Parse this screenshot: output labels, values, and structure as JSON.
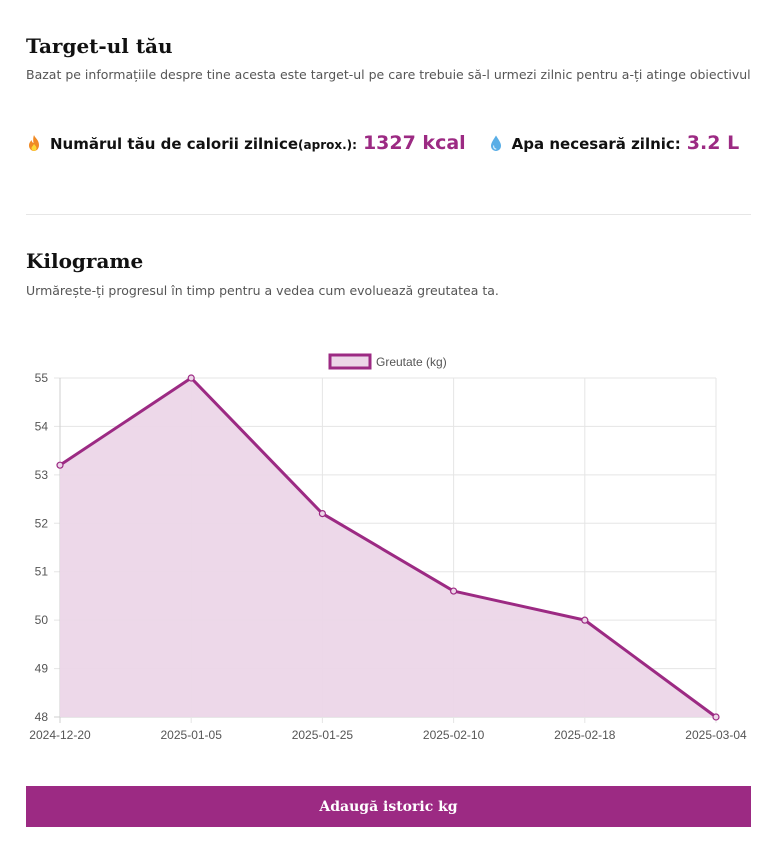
{
  "target": {
    "title": "Target-ul tău",
    "subtitle": "Bazat pe informațiile despre tine acesta este target-ul pe care trebuie să-l urmezi zilnic pentru a-ți atinge obiectivul",
    "calories": {
      "icon": "fire-icon",
      "label": "Numărul tău de calorii zilnice",
      "label_small": "(aprox.):",
      "value": "1327 kcal"
    },
    "water": {
      "icon": "water-drop-icon",
      "label": "Apa necesară zilnic:",
      "value": "3.2 L"
    }
  },
  "weight": {
    "title": "Kilograme",
    "subtitle": "Urmărește-ți progresul în timp pentru a vedea cum evoluează greutatea ta."
  },
  "chart_data": {
    "type": "area",
    "x": [
      "2024-12-20",
      "2025-01-05",
      "2025-01-25",
      "2025-02-10",
      "2025-02-18",
      "2025-03-04"
    ],
    "series": [
      {
        "name": "Greutate (kg)",
        "values": [
          53.2,
          55,
          52.2,
          50.6,
          50,
          48
        ]
      }
    ],
    "ylim": [
      48,
      55
    ],
    "yticks": [
      48,
      49,
      50,
      51,
      52,
      53,
      54,
      55
    ],
    "legend": "top-center",
    "grid": true,
    "colors": {
      "line": "#9c2a83",
      "fill": "#ecd6e8"
    }
  },
  "button": {
    "label": "Adaugă istoric kg"
  },
  "colors": {
    "accent": "#9c2a83"
  }
}
